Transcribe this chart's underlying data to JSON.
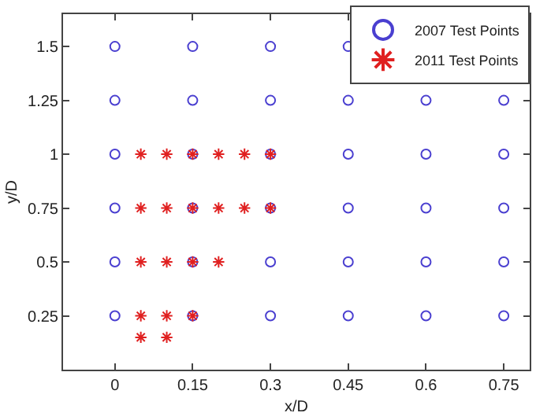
{
  "chart_data": {
    "type": "scatter",
    "xlabel": "x/D",
    "ylabel": "y/D",
    "xlim": [
      -0.1,
      0.8
    ],
    "ylim": [
      0,
      1.65
    ],
    "xticks": [
      0,
      0.15,
      {
        "value": 0.3,
        "label": "0.3"
      },
      0.45,
      0.6,
      0.75
    ],
    "yticks": [
      0.25,
      0.5,
      0.75,
      {
        "value": 1,
        "label": "1"
      },
      1.25,
      1.5
    ],
    "grid": false,
    "legend": "top right",
    "series": [
      {
        "name": "2007 Test Points",
        "color": "#4a3fd0",
        "marker": "circle",
        "x": [
          0,
          0.15,
          0.3,
          0.45,
          0,
          0.15,
          0.3,
          0.45,
          0.6,
          0.75,
          0,
          0.15,
          0.3,
          0.45,
          0.6,
          0.75,
          0,
          0.15,
          0.3,
          0.45,
          0.6,
          0.75,
          0,
          0.15,
          0.3,
          0.45,
          0.6,
          0.75,
          0,
          0.15,
          0.3,
          0.45,
          0.6,
          0.75
        ],
        "values": [
          1.5,
          1.5,
          1.5,
          1.5,
          1.25,
          1.25,
          1.25,
          1.25,
          1.25,
          1.25,
          1,
          1,
          1,
          1,
          1,
          1,
          0.75,
          0.75,
          0.75,
          0.75,
          0.75,
          0.75,
          0.5,
          0.5,
          0.5,
          0.5,
          0.5,
          0.5,
          0.25,
          0.25,
          0.25,
          0.25,
          0.25,
          0.25
        ]
      },
      {
        "name": "2011 Test Points",
        "color": "#e02020",
        "marker": "cross",
        "x": [
          0.05,
          0.1,
          0.15,
          0.2,
          0.25,
          0.3,
          0.05,
          0.1,
          0.15,
          0.2,
          0.25,
          0.3,
          0.05,
          0.1,
          0.15,
          0.2,
          0.05,
          0.1,
          0.15,
          0.05,
          0.1
        ],
        "values": [
          1,
          1,
          1,
          1,
          1,
          1,
          0.75,
          0.75,
          0.75,
          0.75,
          0.75,
          0.75,
          0.5,
          0.5,
          0.5,
          0.5,
          0.25,
          0.25,
          0.25,
          0.15,
          0.15
        ]
      }
    ]
  }
}
